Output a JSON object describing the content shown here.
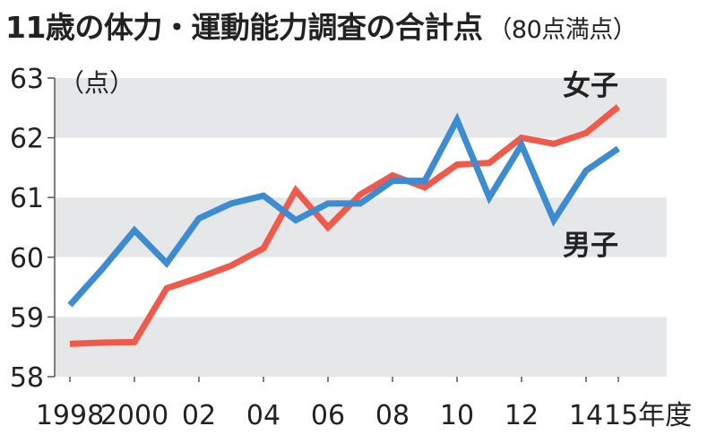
{
  "chart_data": {
    "type": "line",
    "title": "11歳の体力・運動能力調査の合計点",
    "subtitle": "（80点満点）",
    "ylabel": "（点）",
    "x_suffix": "年度",
    "ylim": [
      58,
      63
    ],
    "xlim": [
      1998,
      2015
    ],
    "yticks": [
      58,
      59,
      60,
      61,
      62,
      63
    ],
    "xticks": [
      {
        "value": 1998,
        "label": "1998"
      },
      {
        "value": 2000,
        "label": "2000"
      },
      {
        "value": 2002,
        "label": "02"
      },
      {
        "value": 2004,
        "label": "04"
      },
      {
        "value": 2006,
        "label": "06"
      },
      {
        "value": 2008,
        "label": "08"
      },
      {
        "value": 2010,
        "label": "10"
      },
      {
        "value": 2012,
        "label": "12"
      },
      {
        "value": 2014,
        "label": "14"
      },
      {
        "value": 2015,
        "label": "15"
      }
    ],
    "x": [
      1998,
      1999,
      2000,
      2001,
      2002,
      2003,
      2004,
      2005,
      2006,
      2007,
      2008,
      2009,
      2010,
      2011,
      2012,
      2013,
      2014,
      2015
    ],
    "series": [
      {
        "name": "男子",
        "color": "#3d8bd0",
        "values": [
          59.2,
          59.8,
          60.45,
          59.9,
          60.65,
          60.9,
          61.03,
          60.62,
          60.9,
          60.9,
          61.28,
          61.28,
          62.3,
          61.0,
          61.88,
          60.62,
          61.45,
          61.82
        ]
      },
      {
        "name": "女子",
        "color": "#ef5a4a",
        "values": [
          58.55,
          58.57,
          58.58,
          59.48,
          59.66,
          59.86,
          60.15,
          61.12,
          60.5,
          61.05,
          61.37,
          61.17,
          61.55,
          61.58,
          62.0,
          61.9,
          62.08,
          62.52
        ]
      }
    ]
  }
}
